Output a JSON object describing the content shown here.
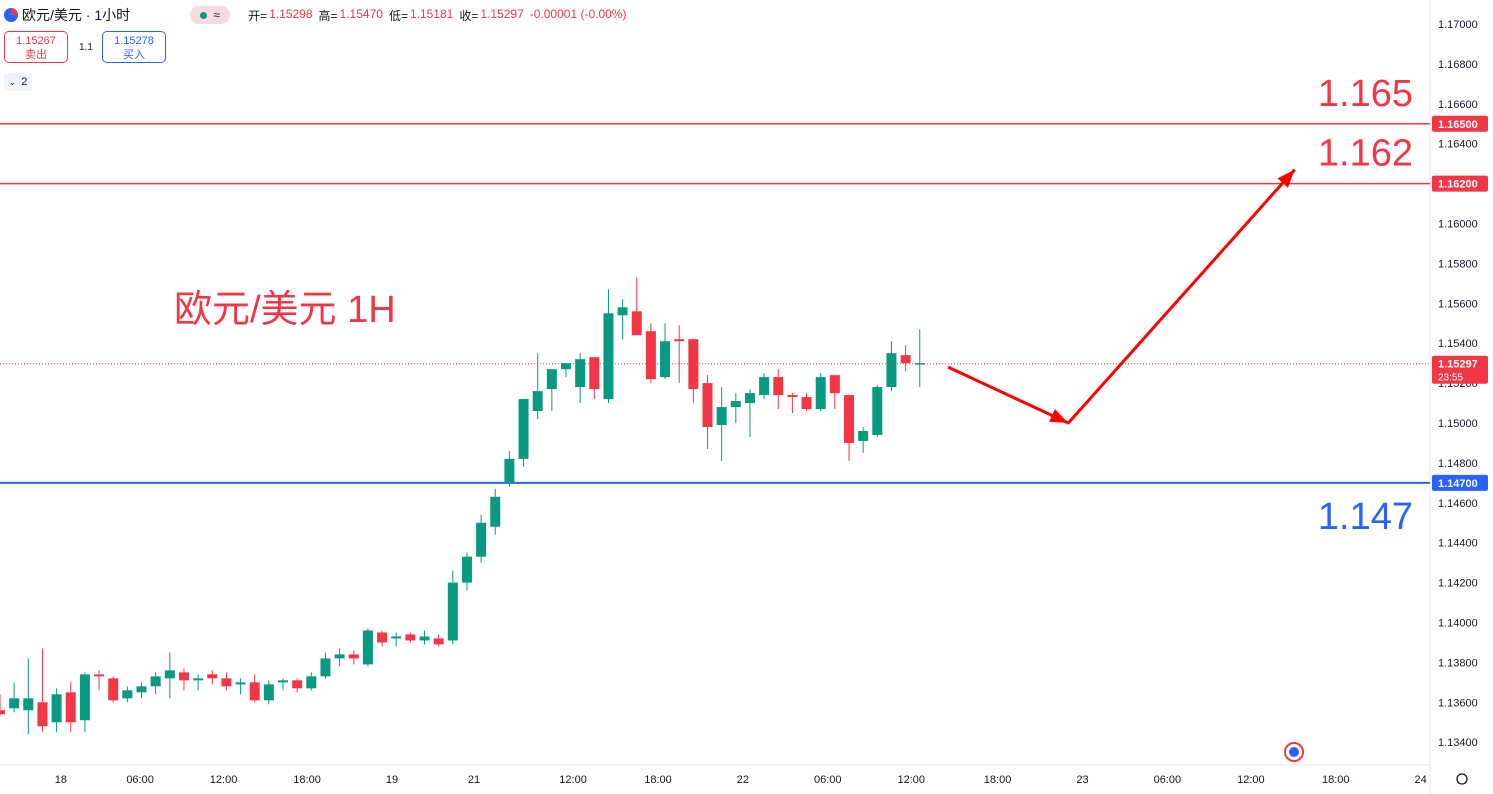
{
  "header": {
    "symbol_title": "欧元/美元 · 1小时",
    "status_icon": "market-status-dot",
    "wave_icon": "wave-icon",
    "ohlc": [
      {
        "label": "开=",
        "value": "1.15298"
      },
      {
        "label": "高=",
        "value": "1.15470"
      },
      {
        "label": "低=",
        "value": "1.15181"
      },
      {
        "label": "收=",
        "value": "1.15297"
      },
      {
        "label": "",
        "value": "-0.00001 (-0.00%)"
      }
    ]
  },
  "trade": {
    "sell_price": "1.15267",
    "sell_label": "卖出",
    "spread": "1.1",
    "buy_price": "1.15278",
    "buy_label": "买入"
  },
  "indicators_toggle": "2",
  "colors": {
    "up": "#089981",
    "down": "#f23645",
    "blue_line": "#2962ff",
    "red_line": "#f23645"
  },
  "chart_data": {
    "type": "candlestick",
    "title": "欧元/美元 1H",
    "ylim": [
      1.1335,
      1.1715
    ],
    "y_ticks": [
      "1.17000",
      "1.16800",
      "1.16600",
      "1.16400",
      "1.16200",
      "1.16000",
      "1.15800",
      "1.15600",
      "1.15400",
      "1.15200",
      "1.15000",
      "1.14800",
      "1.14600",
      "1.14400",
      "1.14200",
      "1.14000",
      "1.13800",
      "1.13600",
      "1.13400"
    ],
    "x_ticks": [
      "18",
      "06:00",
      "12:00",
      "18:00",
      "19",
      "21",
      "12:00",
      "18:00",
      "22",
      "06:00",
      "12:00",
      "18:00",
      "23",
      "06:00",
      "12:00",
      "18:00",
      "24"
    ],
    "candles": [
      [
        1.1356,
        1.1364,
        1.1353,
        1.1354
      ],
      [
        1.1357,
        1.137,
        1.1355,
        1.1362
      ],
      [
        1.1356,
        1.1382,
        1.1344,
        1.1362
      ],
      [
        1.136,
        1.1387,
        1.1345,
        1.1348
      ],
      [
        1.135,
        1.1367,
        1.1345,
        1.1364
      ],
      [
        1.1365,
        1.137,
        1.1345,
        1.135
      ],
      [
        1.1351,
        1.1375,
        1.1345,
        1.1374
      ],
      [
        1.1374,
        1.1376,
        1.1366,
        1.1373
      ],
      [
        1.1372,
        1.1373,
        1.136,
        1.1361
      ],
      [
        1.1362,
        1.1368,
        1.136,
        1.1366
      ],
      [
        1.1365,
        1.137,
        1.1362,
        1.1368
      ],
      [
        1.1368,
        1.1375,
        1.1364,
        1.1373
      ],
      [
        1.1372,
        1.1385,
        1.1362,
        1.1376
      ],
      [
        1.1375,
        1.1377,
        1.1366,
        1.1371
      ],
      [
        1.1371,
        1.1374,
        1.1366,
        1.1372
      ],
      [
        1.1374,
        1.1376,
        1.1369,
        1.1372
      ],
      [
        1.1372,
        1.1375,
        1.1366,
        1.1368
      ],
      [
        1.1369,
        1.1372,
        1.1364,
        1.137
      ],
      [
        1.137,
        1.1374,
        1.136,
        1.1361
      ],
      [
        1.1361,
        1.1371,
        1.1359,
        1.1369
      ],
      [
        1.137,
        1.1372,
        1.1366,
        1.1371
      ],
      [
        1.1371,
        1.1372,
        1.1365,
        1.1367
      ],
      [
        1.1367,
        1.1375,
        1.1366,
        1.1373
      ],
      [
        1.1373,
        1.1385,
        1.1372,
        1.1382
      ],
      [
        1.1382,
        1.1387,
        1.1378,
        1.1384
      ],
      [
        1.1384,
        1.1386,
        1.1379,
        1.1382
      ],
      [
        1.1379,
        1.1397,
        1.1378,
        1.1396
      ],
      [
        1.1395,
        1.1396,
        1.1388,
        1.139
      ],
      [
        1.1392,
        1.1395,
        1.1388,
        1.1393
      ],
      [
        1.1394,
        1.1395,
        1.139,
        1.1391
      ],
      [
        1.1391,
        1.1396,
        1.1389,
        1.1393
      ],
      [
        1.1392,
        1.1394,
        1.1388,
        1.1389
      ],
      [
        1.1391,
        1.1426,
        1.1389,
        1.142
      ],
      [
        1.142,
        1.1435,
        1.1416,
        1.1433
      ],
      [
        1.1433,
        1.1454,
        1.143,
        1.145
      ],
      [
        1.1448,
        1.1467,
        1.1444,
        1.1463
      ],
      [
        1.147,
        1.1486,
        1.1468,
        1.1482
      ],
      [
        1.1482,
        1.1512,
        1.1478,
        1.1512
      ],
      [
        1.1506,
        1.1535,
        1.1502,
        1.1516
      ],
      [
        1.1517,
        1.1525,
        1.1506,
        1.1527
      ],
      [
        1.1527,
        1.153,
        1.1523,
        1.153
      ],
      [
        1.1518,
        1.1535,
        1.151,
        1.1532
      ],
      [
        1.1533,
        1.1531,
        1.1512,
        1.1517
      ],
      [
        1.1512,
        1.1567,
        1.151,
        1.1555
      ],
      [
        1.1554,
        1.1562,
        1.1542,
        1.1558
      ],
      [
        1.1556,
        1.1573,
        1.1545,
        1.1544
      ],
      [
        1.1546,
        1.155,
        1.152,
        1.1522
      ],
      [
        1.1523,
        1.155,
        1.1522,
        1.1541
      ],
      [
        1.1542,
        1.1549,
        1.152,
        1.1541
      ],
      [
        1.1542,
        1.1542,
        1.151,
        1.1517
      ],
      [
        1.152,
        1.1524,
        1.1487,
        1.1498
      ],
      [
        1.1499,
        1.1518,
        1.1481,
        1.1508
      ],
      [
        1.1508,
        1.1515,
        1.15,
        1.1511
      ],
      [
        1.151,
        1.1517,
        1.1493,
        1.1515
      ],
      [
        1.1514,
        1.1525,
        1.1512,
        1.1523
      ],
      [
        1.1523,
        1.1527,
        1.1507,
        1.1514
      ],
      [
        1.1514,
        1.1515,
        1.1505,
        1.1513
      ],
      [
        1.1513,
        1.1515,
        1.1506,
        1.1507
      ],
      [
        1.1507,
        1.1525,
        1.1506,
        1.1523
      ],
      [
        1.1524,
        1.1523,
        1.1507,
        1.1515
      ],
      [
        1.1514,
        1.1512,
        1.1481,
        1.149
      ],
      [
        1.1491,
        1.1498,
        1.1485,
        1.1496
      ],
      [
        1.1494,
        1.1519,
        1.1493,
        1.1518
      ],
      [
        1.1518,
        1.1541,
        1.1516,
        1.1535
      ],
      [
        1.1534,
        1.1539,
        1.1526,
        1.153
      ],
      [
        1.153,
        1.1547,
        1.1518,
        1.153
      ]
    ],
    "horizontal_lines": [
      {
        "value": 1.165,
        "label": "1.16500",
        "text": "1.165",
        "color": "#f23645"
      },
      {
        "value": 1.162,
        "label": "1.16200",
        "text": "1.162",
        "color": "#f23645"
      },
      {
        "value": 1.147,
        "label": "1.14700",
        "text": "1.147",
        "color": "#2962ff"
      }
    ],
    "last_price": {
      "value": 1.15297,
      "label": "1.15297",
      "countdown": "23:55"
    },
    "projection": [
      {
        "x_after_last": 2,
        "y": 1.1528
      },
      {
        "x_after_last": 10.5,
        "y": 1.15
      },
      {
        "x_after_last": 26.5,
        "y": 1.1627
      }
    ]
  }
}
